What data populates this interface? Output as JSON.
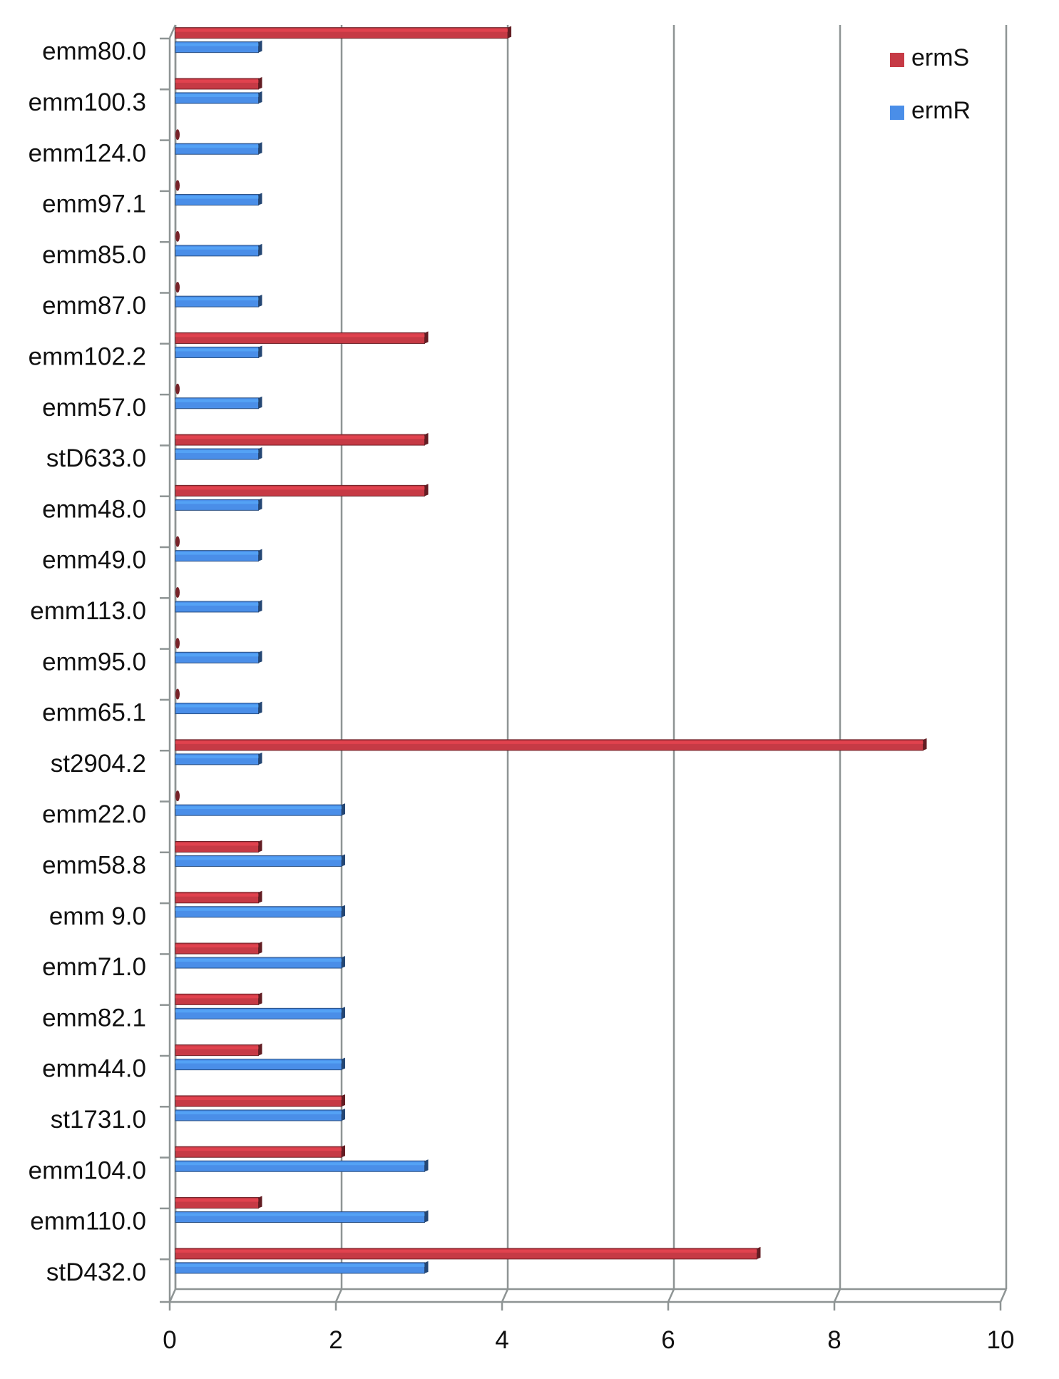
{
  "chart_data": {
    "type": "bar",
    "orientation": "horizontal",
    "style": "3d",
    "categories": [
      "emm80.0",
      "emm100.3",
      "emm124.0",
      "emm97.1",
      "emm85.0",
      "emm87.0",
      "emm102.2",
      "emm57.0",
      "stD633.0",
      "emm48.0",
      "emm49.0",
      "emm113.0",
      "emm95.0",
      "emm65.1",
      "st2904.2",
      "emm22.0",
      "emm58.8",
      "emm 9.0",
      "emm71.0",
      "emm82.1",
      "emm44.0",
      "st1731.0",
      "emm104.0",
      "emm110.0",
      "stD432.0"
    ],
    "series": [
      {
        "name": "ermS",
        "color": "#c63a45",
        "values": [
          4,
          1,
          0,
          0,
          0,
          0,
          3,
          0,
          3,
          3,
          0,
          0,
          0,
          0,
          9,
          0,
          1,
          1,
          1,
          1,
          1,
          2,
          2,
          1,
          7
        ]
      },
      {
        "name": "ermR",
        "color": "#4a8ee8",
        "values": [
          1,
          1,
          1,
          1,
          1,
          1,
          1,
          1,
          1,
          1,
          1,
          1,
          1,
          1,
          1,
          2,
          2,
          2,
          2,
          2,
          2,
          2,
          3,
          3,
          3
        ]
      }
    ],
    "xlim": [
      0,
      10
    ],
    "xticks": [
      "0",
      "2",
      "4",
      "6",
      "8",
      "10"
    ],
    "grid": true,
    "legend_position": "top-right",
    "title": "",
    "xlabel": "",
    "ylabel": ""
  }
}
